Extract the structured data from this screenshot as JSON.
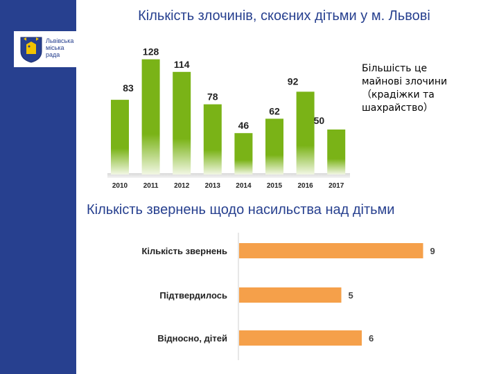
{
  "title_top": "Кількість злочинів, скоєних дітьми у м. Львові",
  "title_mid": "Кількість звернень щодо насильства над дітьми",
  "logo": {
    "lines": [
      "Львівська",
      "міська",
      "рада"
    ]
  },
  "note": {
    "lines": [
      "Більшість  це",
      "майнові  злочини",
      "（крадіжки  та",
      "шахрайство）"
    ]
  },
  "colors": {
    "band": "#27408f",
    "bar_green": "#7ab317",
    "bar_orange": "#f5a04a",
    "title": "#27408f"
  },
  "chart_data": [
    {
      "type": "bar",
      "categories": [
        "2010",
        "2011",
        "2012",
        "2013",
        "2014",
        "2015",
        "2016",
        "2017"
      ],
      "values": [
        83,
        128,
        114,
        78,
        46,
        62,
        92,
        50
      ],
      "ylim": [
        0,
        140
      ],
      "grid": false,
      "legend": "none"
    },
    {
      "type": "bar",
      "orientation": "horizontal",
      "categories": [
        "Кількість  звернень",
        "Підтвердилось",
        "Відносно, дітей"
      ],
      "values": [
        9,
        5,
        6
      ],
      "xlim": [
        0,
        10
      ],
      "grid": false,
      "legend": "none"
    }
  ]
}
